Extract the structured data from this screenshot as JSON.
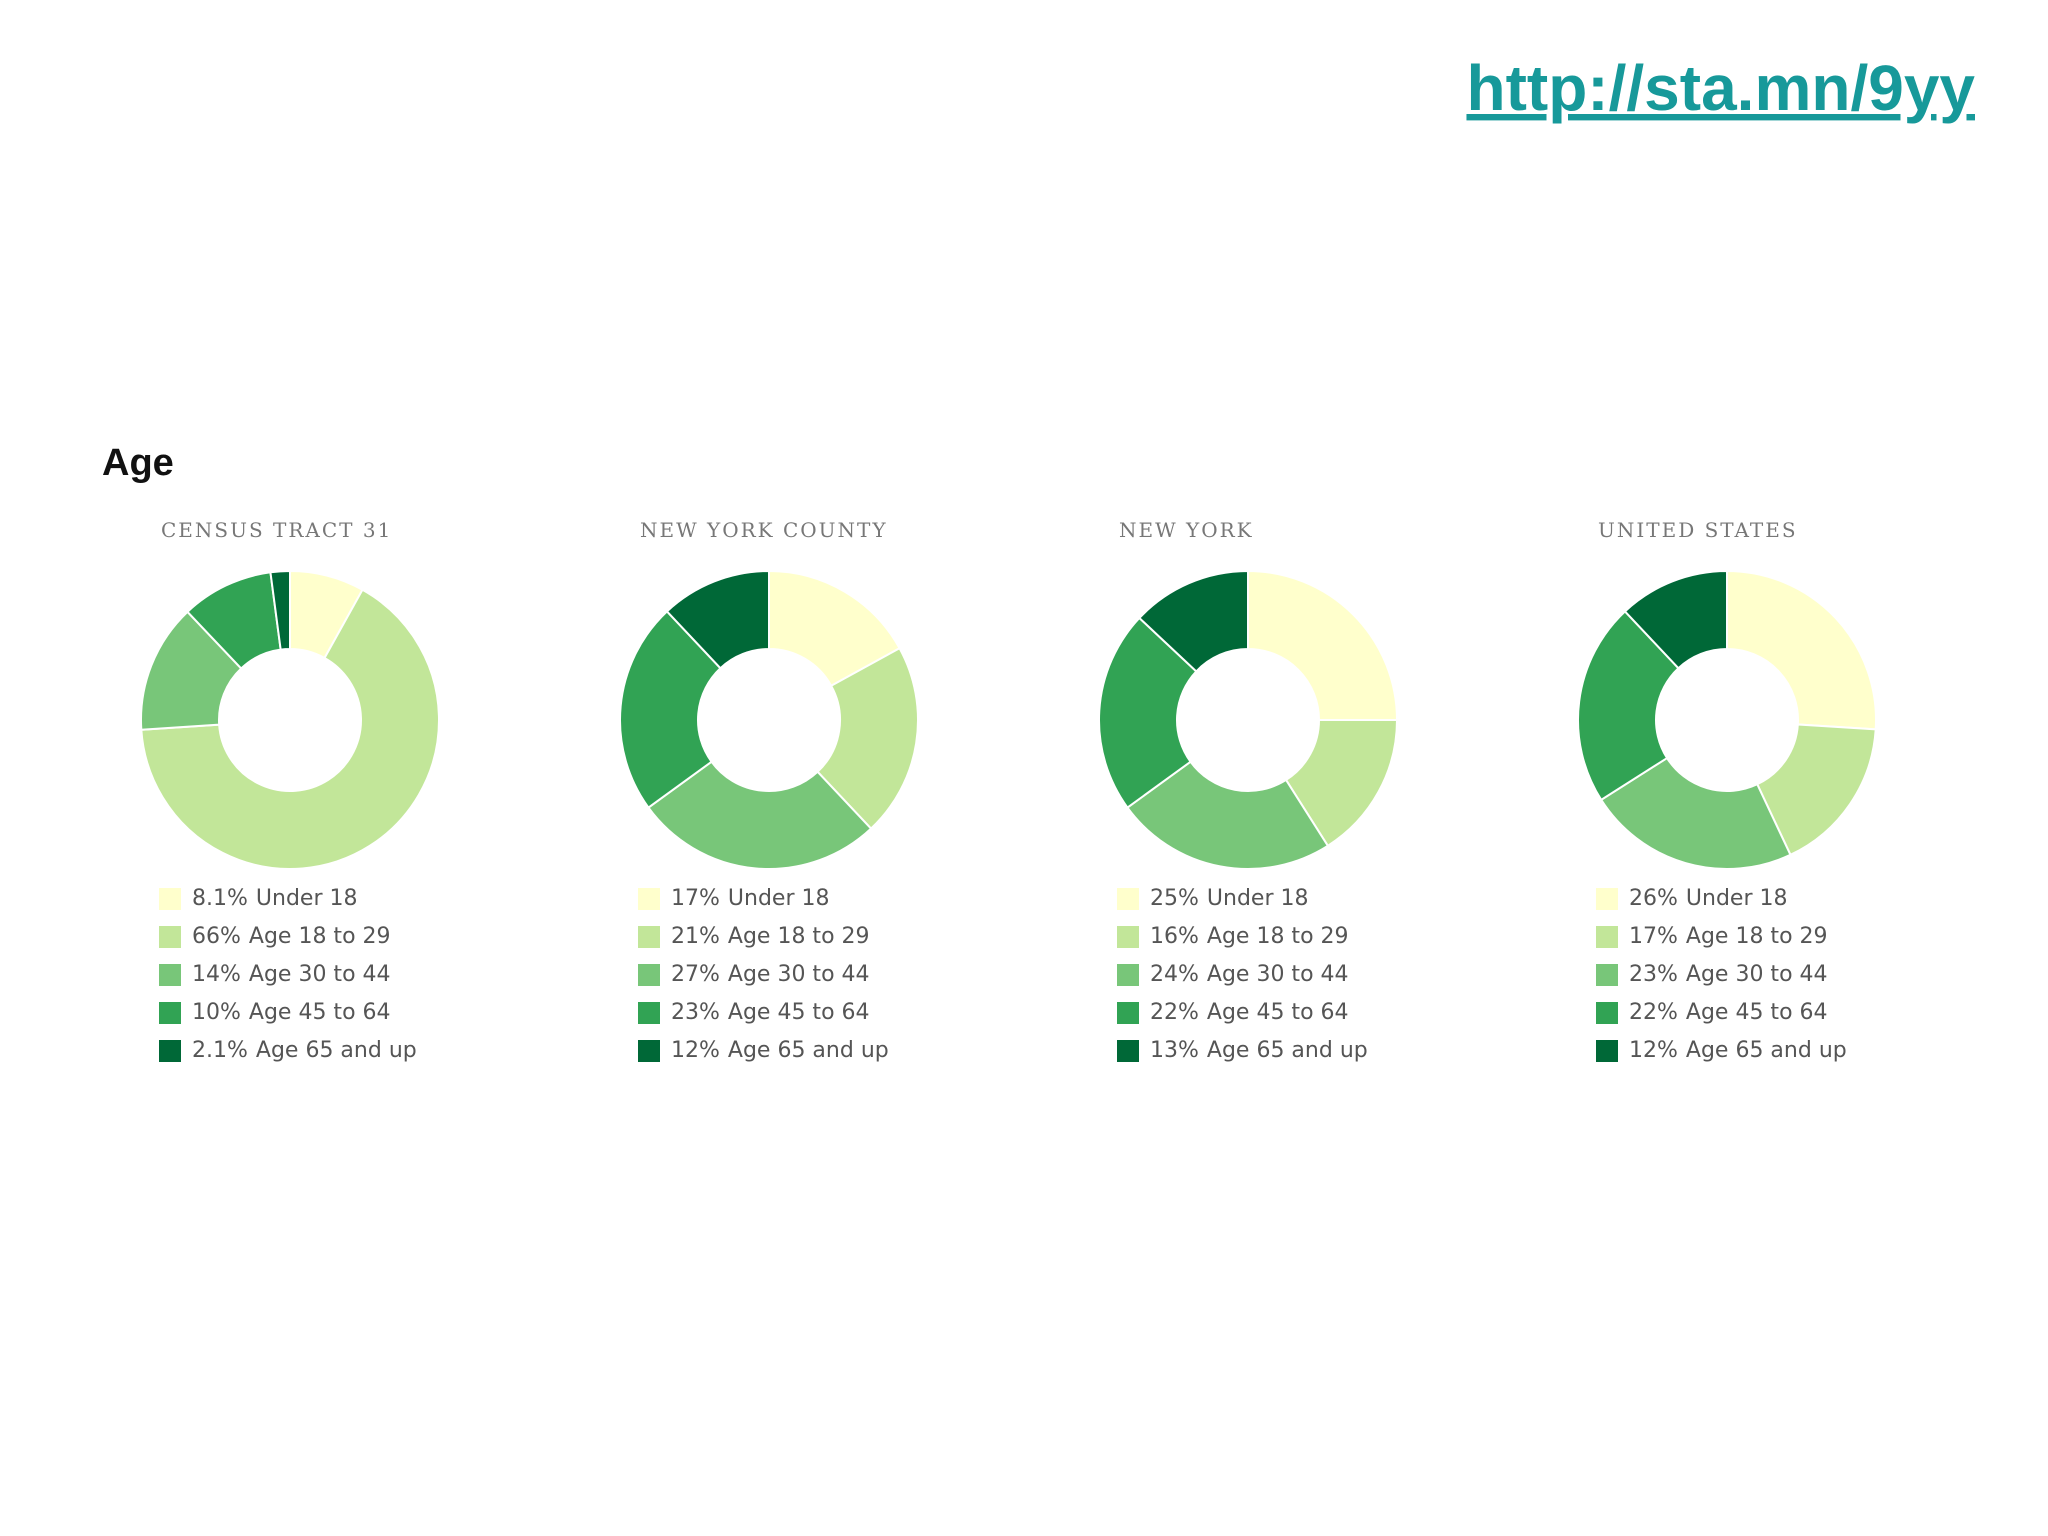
{
  "link": "http://sta.mn/9yy",
  "heading": "Age",
  "chart_data": [
    {
      "type": "donut",
      "title": "CENSUS TRACT 31",
      "categories": [
        "Under 18",
        "Age 18 to 29",
        "Age 30 to 44",
        "Age 45 to 64",
        "Age 65 and up"
      ],
      "values": [
        8.1,
        66,
        14,
        10,
        2.1
      ],
      "value_labels": [
        "8.1%",
        "66%",
        "14%",
        "10%",
        "2.1%"
      ],
      "colors": [
        "#ffffcc",
        "#c2e699",
        "#78c679",
        "#31a354",
        "#006837"
      ]
    },
    {
      "type": "donut",
      "title": "NEW YORK COUNTY",
      "categories": [
        "Under 18",
        "Age 18 to 29",
        "Age 30 to 44",
        "Age 45 to 64",
        "Age 65 and up"
      ],
      "values": [
        17,
        21,
        27,
        23,
        12
      ],
      "value_labels": [
        "17%",
        "21%",
        "27%",
        "23%",
        "12%"
      ],
      "colors": [
        "#ffffcc",
        "#c2e699",
        "#78c679",
        "#31a354",
        "#006837"
      ]
    },
    {
      "type": "donut",
      "title": "NEW YORK",
      "categories": [
        "Under 18",
        "Age 18 to 29",
        "Age 30 to 44",
        "Age 45 to 64",
        "Age 65 and up"
      ],
      "values": [
        25,
        16,
        24,
        22,
        13
      ],
      "value_labels": [
        "25%",
        "16%",
        "24%",
        "22%",
        "13%"
      ],
      "colors": [
        "#ffffcc",
        "#c2e699",
        "#78c679",
        "#31a354",
        "#006837"
      ]
    },
    {
      "type": "donut",
      "title": "UNITED STATES",
      "categories": [
        "Under 18",
        "Age 18 to 29",
        "Age 30 to 44",
        "Age 45 to 64",
        "Age 65 and up"
      ],
      "values": [
        26,
        17,
        23,
        22,
        12
      ],
      "value_labels": [
        "26%",
        "17%",
        "23%",
        "22%",
        "12%"
      ],
      "colors": [
        "#ffffcc",
        "#c2e699",
        "#78c679",
        "#31a354",
        "#006837"
      ]
    }
  ]
}
